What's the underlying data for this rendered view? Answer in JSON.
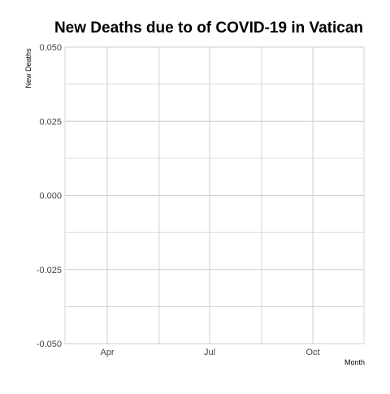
{
  "chart_data": {
    "type": "line",
    "title": "New Deaths due to of COVID-19 in Vatican",
    "xlabel": "Month",
    "ylabel": "New Deaths",
    "x_ticks": [
      "Apr",
      "Jul",
      "Oct"
    ],
    "y_ticks": [
      "0.050",
      "0.025",
      "0.000",
      "-0.025",
      "-0.050"
    ],
    "ylim": [
      -0.05,
      0.05
    ],
    "series": [
      {
        "values": []
      }
    ],
    "grid": true,
    "colors": {
      "grid": "#cccccc",
      "tick_text": "#444444"
    }
  }
}
